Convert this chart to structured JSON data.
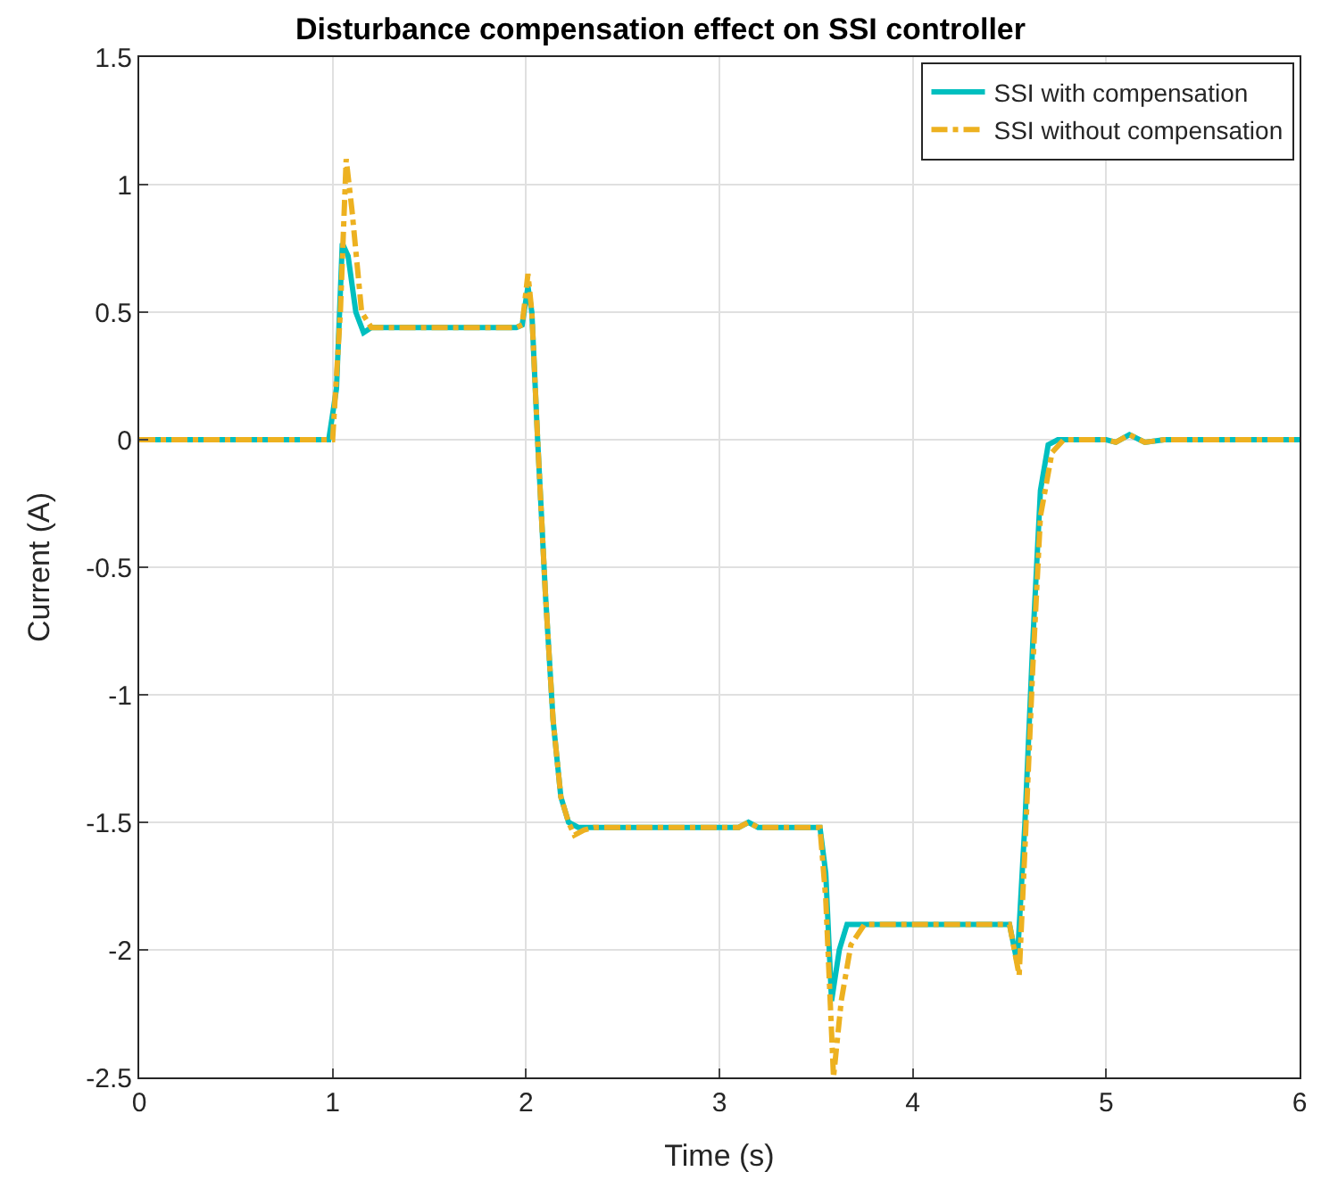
{
  "chart_data": {
    "type": "line",
    "title": "Disturbance compensation effect on SSI controller",
    "xlabel": "Time (s)",
    "ylabel": "Current (A)",
    "xlim": [
      0,
      6
    ],
    "xticks": [
      0,
      1,
      2,
      3,
      4,
      5,
      6
    ],
    "ylim": [
      -2.5,
      1.5
    ],
    "yticks": [
      -2.5,
      -2,
      -1.5,
      -1,
      -0.5,
      0,
      0.5,
      1,
      1.5
    ],
    "grid": true,
    "legend": "top right",
    "series": [
      {
        "name": "SSI with compensation",
        "color": "#00bfbf",
        "line_style": "solid",
        "x": [
          0,
          0.98,
          1.02,
          1.05,
          1.08,
          1.12,
          1.16,
          1.2,
          1.95,
          1.98,
          2.01,
          2.03,
          2.06,
          2.1,
          2.14,
          2.18,
          2.22,
          2.27,
          3.1,
          3.15,
          3.2,
          3.52,
          3.55,
          3.58,
          3.62,
          3.66,
          3.72,
          4.5,
          4.54,
          4.58,
          4.62,
          4.66,
          4.7,
          4.75,
          5.0,
          5.05,
          5.12,
          5.2,
          5.3,
          6
        ],
        "values": [
          0,
          0,
          0.2,
          0.77,
          0.72,
          0.5,
          0.42,
          0.44,
          0.44,
          0.45,
          0.6,
          0.5,
          0,
          -0.6,
          -1.1,
          -1.4,
          -1.5,
          -1.52,
          -1.52,
          -1.5,
          -1.52,
          -1.52,
          -1.7,
          -2.2,
          -2.0,
          -1.9,
          -1.9,
          -1.9,
          -2.05,
          -1.5,
          -0.8,
          -0.2,
          -0.02,
          0,
          0,
          -0.01,
          0.02,
          -0.01,
          0,
          0
        ]
      },
      {
        "name": "SSI without compensation",
        "color": "#edb120",
        "line_style": "dashdot",
        "x": [
          0,
          1.0,
          1.04,
          1.07,
          1.1,
          1.15,
          1.2,
          1.95,
          1.98,
          2.01,
          2.03,
          2.06,
          2.1,
          2.14,
          2.18,
          2.22,
          2.25,
          2.3,
          2.35,
          3.1,
          3.15,
          3.2,
          3.52,
          3.55,
          3.59,
          3.63,
          3.68,
          3.75,
          4.5,
          4.55,
          4.58,
          4.62,
          4.66,
          4.72,
          4.78,
          5.0,
          5.05,
          5.12,
          5.2,
          5.3,
          6
        ],
        "values": [
          0,
          0,
          0.5,
          1.1,
          0.9,
          0.5,
          0.44,
          0.44,
          0.45,
          0.65,
          0.5,
          0,
          -0.6,
          -1.1,
          -1.4,
          -1.5,
          -1.55,
          -1.53,
          -1.52,
          -1.52,
          -1.5,
          -1.52,
          -1.52,
          -1.8,
          -2.5,
          -2.2,
          -1.98,
          -1.9,
          -1.9,
          -2.1,
          -1.6,
          -0.9,
          -0.3,
          -0.05,
          0,
          0,
          -0.01,
          0.02,
          -0.01,
          0,
          0
        ]
      }
    ]
  }
}
